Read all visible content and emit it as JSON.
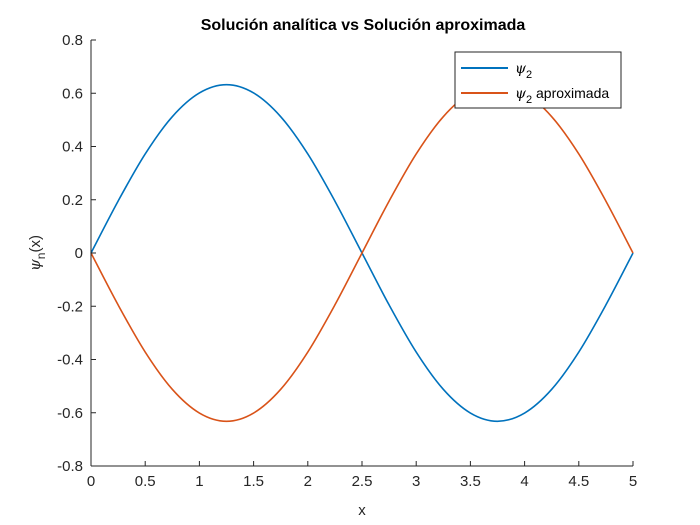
{
  "chart_data": {
    "type": "line",
    "title": "Solución analítica vs Solución aproximada",
    "xlabel": "x",
    "ylabel": {
      "base": "ψ",
      "sub": "n",
      "suffix": "(x)"
    },
    "xlim": [
      0,
      5
    ],
    "ylim": [
      -0.8,
      0.8
    ],
    "xticks": [
      0,
      0.5,
      1,
      1.5,
      2,
      2.5,
      3,
      3.5,
      4,
      4.5,
      5
    ],
    "xtick_labels": [
      "0",
      "0.5",
      "1",
      "1.5",
      "2",
      "2.5",
      "3",
      "3.5",
      "4",
      "4.5",
      "5"
    ],
    "yticks": [
      -0.8,
      -0.6,
      -0.4,
      -0.2,
      0,
      0.2,
      0.4,
      0.6,
      0.8
    ],
    "ytick_labels": [
      "-0.8",
      "-0.6",
      "-0.4",
      "-0.2",
      "0",
      "0.2",
      "0.4",
      "0.6",
      "0.8"
    ],
    "grid": false,
    "legend_position": "top-right",
    "x": [
      0,
      0.25,
      0.5,
      0.75,
      1,
      1.25,
      1.5,
      1.75,
      2,
      2.25,
      2.5,
      2.75,
      3,
      3.25,
      3.5,
      3.75,
      4,
      4.25,
      4.5,
      4.75,
      5
    ],
    "series": [
      {
        "name": {
          "base": "ψ",
          "sub": "2",
          "suffix": ""
        },
        "color": "#0072BD",
        "values": [
          0,
          0.195,
          0.372,
          0.512,
          0.601,
          0.632,
          0.601,
          0.512,
          0.372,
          0.195,
          0,
          -0.195,
          -0.372,
          -0.512,
          -0.601,
          -0.632,
          -0.601,
          -0.512,
          -0.372,
          -0.195,
          0
        ]
      },
      {
        "name": {
          "base": "ψ",
          "sub": "2",
          "suffix": " aproximada"
        },
        "color": "#D95319",
        "values": [
          0,
          -0.195,
          -0.372,
          -0.512,
          -0.601,
          -0.632,
          -0.601,
          -0.512,
          -0.372,
          -0.195,
          0,
          0.195,
          0.372,
          0.512,
          0.601,
          0.632,
          0.601,
          0.512,
          0.372,
          0.195,
          0
        ]
      }
    ]
  }
}
